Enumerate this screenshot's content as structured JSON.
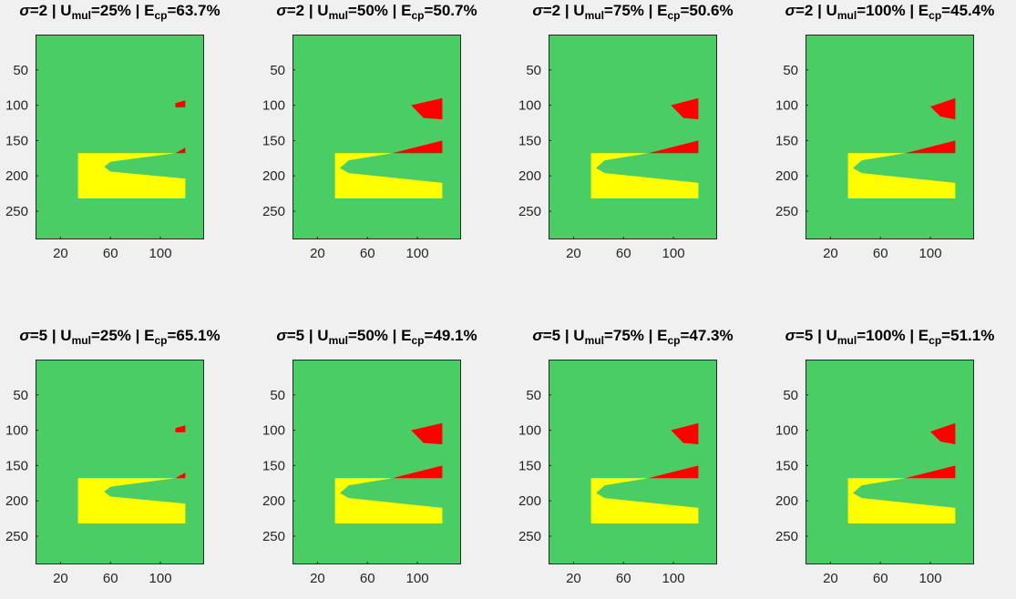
{
  "colors": {
    "background": "#4bcd66",
    "region_yellow": "#ffff00",
    "region_red": "#ff0000",
    "figure_bg": "#f0f0f0"
  },
  "chart_data": [
    {
      "type": "heatmap",
      "sigma": "2",
      "u_mul": "25%",
      "e_cp": "63.7%",
      "xticks": [
        "20",
        "60",
        "100"
      ],
      "yticks": [
        "50",
        "100",
        "150",
        "200",
        "250"
      ],
      "xlim": [
        0,
        135
      ],
      "ylim": [
        290,
        0
      ]
    },
    {
      "type": "heatmap",
      "sigma": "2",
      "u_mul": "50%",
      "e_cp": "50.7%",
      "xticks": [
        "20",
        "60",
        "100"
      ],
      "yticks": [
        "50",
        "100",
        "150",
        "200",
        "250"
      ],
      "xlim": [
        0,
        135
      ],
      "ylim": [
        290,
        0
      ]
    },
    {
      "type": "heatmap",
      "sigma": "2",
      "u_mul": "75%",
      "e_cp": "50.6%",
      "xticks": [
        "20",
        "60",
        "100"
      ],
      "yticks": [
        "50",
        "100",
        "150",
        "200",
        "250"
      ],
      "xlim": [
        0,
        135
      ],
      "ylim": [
        290,
        0
      ]
    },
    {
      "type": "heatmap",
      "sigma": "2",
      "u_mul": "100%",
      "e_cp": "45.4%",
      "xticks": [
        "20",
        "60",
        "100"
      ],
      "yticks": [
        "50",
        "100",
        "150",
        "200",
        "250"
      ],
      "xlim": [
        0,
        135
      ],
      "ylim": [
        290,
        0
      ]
    },
    {
      "type": "heatmap",
      "sigma": "5",
      "u_mul": "25%",
      "e_cp": "65.1%",
      "xticks": [
        "20",
        "60",
        "100"
      ],
      "yticks": [
        "50",
        "100",
        "150",
        "200",
        "250"
      ],
      "xlim": [
        0,
        135
      ],
      "ylim": [
        290,
        0
      ]
    },
    {
      "type": "heatmap",
      "sigma": "5",
      "u_mul": "50%",
      "e_cp": "49.1%",
      "xticks": [
        "20",
        "60",
        "100"
      ],
      "yticks": [
        "50",
        "100",
        "150",
        "200",
        "250"
      ],
      "xlim": [
        0,
        135
      ],
      "ylim": [
        290,
        0
      ]
    },
    {
      "type": "heatmap",
      "sigma": "5",
      "u_mul": "75%",
      "e_cp": "47.3%",
      "xticks": [
        "20",
        "60",
        "100"
      ],
      "yticks": [
        "50",
        "100",
        "150",
        "200",
        "250"
      ],
      "xlim": [
        0,
        135
      ],
      "ylim": [
        290,
        0
      ]
    },
    {
      "type": "heatmap",
      "sigma": "5",
      "u_mul": "100%",
      "e_cp": "51.1%",
      "xticks": [
        "20",
        "60",
        "100"
      ],
      "yticks": [
        "50",
        "100",
        "150",
        "200",
        "250"
      ],
      "xlim": [
        0,
        135
      ],
      "ylim": [
        290,
        0
      ]
    }
  ]
}
